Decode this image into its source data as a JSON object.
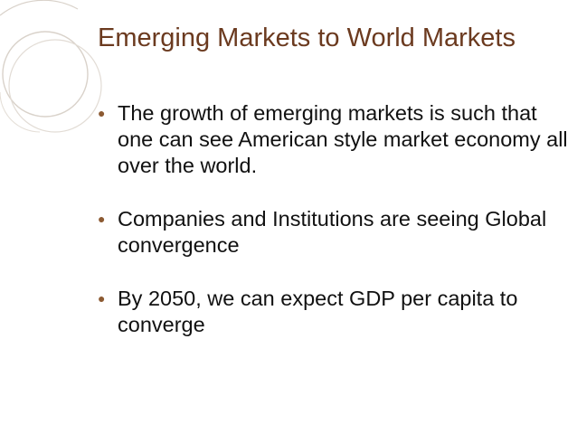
{
  "slide": {
    "title": "Emerging Markets to World Markets",
    "bullets": [
      {
        "icon": "bullet-icon",
        "text": "The growth of emerging markets is such that one can see American style market economy all over the world."
      },
      {
        "icon": "bullet-icon",
        "text": "Companies and Institutions are seeing Global convergence"
      },
      {
        "icon": "bullet-icon",
        "text": "By 2050, we can expect GDP per capita to converge"
      }
    ]
  },
  "colors": {
    "title": "#6b3a1f",
    "body_text": "#111111",
    "decoration": "#cfc6bd",
    "bullet": "#8c5a32"
  }
}
